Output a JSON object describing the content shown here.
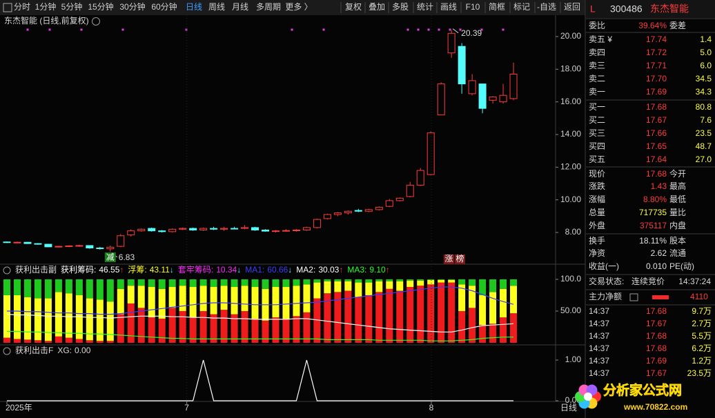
{
  "toolbar": {
    "left": [
      "分时",
      "1分钟",
      "5分钟",
      "15分钟",
      "30分钟",
      "60分钟",
      "日线",
      "周线",
      "月线",
      "多周期",
      "更多 〉"
    ],
    "active_index": 6,
    "right": [
      "复权",
      "叠加",
      "多股",
      "统计",
      "画线",
      "F10",
      "简框",
      "标记",
      "-自选",
      "返回"
    ]
  },
  "chart_data": [
    {
      "type": "candlestick",
      "title": "东杰智能 (日线,前复权)",
      "open": [
        7.42,
        7.38,
        7.4,
        7.32,
        7.28,
        7.12,
        7.15,
        7.18,
        7.2,
        7.05,
        7.0,
        7.15,
        7.85,
        8.1,
        8.25,
        8.1,
        8.05,
        8.2,
        8.25,
        8.15,
        8.25,
        8.2,
        8.25,
        8.25,
        8.3,
        8.15,
        8.08,
        8.1,
        8.12,
        8.15,
        8.3,
        8.85,
        9.1,
        9.2,
        9.35,
        9.3,
        9.4,
        9.6,
        9.95,
        10.2,
        10.9,
        11.55,
        15.2,
        19.0,
        19.4,
        16.5,
        17.1,
        16.1,
        16.0,
        16.2
      ],
      "high": [
        7.45,
        7.44,
        7.42,
        7.35,
        7.3,
        7.18,
        7.2,
        7.25,
        7.22,
        7.12,
        7.2,
        7.9,
        8.2,
        8.25,
        8.3,
        8.15,
        8.25,
        8.3,
        8.3,
        8.3,
        8.35,
        8.35,
        8.35,
        8.45,
        8.35,
        8.2,
        8.15,
        8.2,
        8.2,
        8.35,
        8.85,
        9.15,
        9.25,
        9.35,
        9.45,
        9.45,
        9.6,
        10.05,
        10.15,
        11.1,
        11.95,
        14.2,
        17.2,
        20.39,
        19.6,
        17.7,
        17.1,
        16.35,
        17.1,
        18.4
      ],
      "low": [
        7.36,
        7.34,
        7.3,
        7.25,
        7.1,
        7.08,
        7.1,
        7.12,
        7.0,
        6.95,
        6.83,
        7.1,
        7.75,
        8.05,
        8.05,
        8.0,
        8.0,
        8.15,
        8.1,
        8.1,
        8.15,
        8.1,
        8.2,
        8.2,
        8.1,
        8.05,
        8.0,
        8.05,
        8.05,
        8.1,
        8.25,
        8.8,
        9.0,
        9.1,
        9.25,
        9.25,
        9.35,
        9.55,
        9.9,
        10.15,
        10.85,
        11.5,
        15.2,
        18.7,
        16.5,
        16.4,
        15.3,
        15.9,
        15.9,
        16.1
      ],
      "close": [
        7.38,
        7.4,
        7.32,
        7.28,
        7.12,
        7.15,
        7.18,
        7.2,
        7.05,
        7.02,
        7.1,
        7.8,
        8.1,
        8.2,
        8.1,
        8.05,
        8.2,
        8.25,
        8.15,
        8.25,
        8.2,
        8.25,
        8.25,
        8.3,
        8.15,
        8.08,
        8.1,
        8.12,
        8.15,
        8.3,
        8.8,
        9.1,
        9.2,
        9.3,
        9.3,
        9.4,
        9.55,
        9.95,
        10.1,
        10.9,
        11.8,
        14.1,
        17.1,
        20.2,
        17.1,
        17.3,
        15.6,
        16.3,
        16.4,
        17.7
      ],
      "up_color": "#ff3c3c",
      "down_color": "#54fcfc",
      "xlim": [
        -0.4,
        53.07
      ],
      "ylim": [
        6.1,
        20.55
      ],
      "yticks": [
        {
          "value": 8,
          "label": "8.00"
        },
        {
          "value": 10,
          "label": "10.00"
        },
        {
          "value": 12,
          "label": "12.00"
        },
        {
          "value": 14,
          "label": "14.00"
        },
        {
          "value": 16,
          "label": "16.00"
        },
        {
          "value": 18,
          "label": "18.00"
        },
        {
          "value": 20,
          "label": "20.00"
        }
      ],
      "signals": [
        "减",
        "涨",
        "榜"
      ]
    },
    {
      "type": "stacked-bar",
      "title": "获利出击副",
      "series": [
        {
          "name": "获利筹码:",
          "color": "#ee1c1c",
          "label_color": "#ffffff",
          "trend": "↑",
          "values": [
            8,
            6,
            5,
            4,
            3,
            10,
            8,
            6,
            4,
            3,
            3,
            45,
            62,
            55,
            40,
            38,
            55,
            50,
            40,
            50,
            45,
            52,
            45,
            50,
            38,
            35,
            40,
            38,
            42,
            48,
            70,
            78,
            80,
            82,
            72,
            75,
            80,
            85,
            82,
            88,
            90,
            92,
            95,
            95,
            50,
            55,
            28,
            30,
            40,
            46.55
          ]
        },
        {
          "name": "浮筹:",
          "color": "#ffff1e",
          "label_color": "#ffff1e",
          "trend": "↓",
          "values": [
            67,
            69,
            67,
            66,
            67,
            70,
            70,
            69,
            66,
            65,
            62,
            40,
            28,
            35,
            48,
            47,
            33,
            40,
            48,
            40,
            43,
            38,
            43,
            40,
            50,
            50,
            48,
            50,
            48,
            44,
            25,
            19,
            17,
            15,
            23,
            20,
            17,
            12,
            15,
            10,
            8,
            7,
            4,
            4,
            42,
            35,
            47,
            50,
            45,
            43.11
          ]
        },
        {
          "name": "套牢筹码:",
          "color": "#1ec81e",
          "label_color": "#ff28ff",
          "trend": "↓",
          "values": [
            25,
            25,
            28,
            30,
            30,
            20,
            22,
            25,
            30,
            32,
            35,
            15,
            10,
            10,
            12,
            15,
            12,
            10,
            12,
            10,
            12,
            10,
            12,
            10,
            12,
            15,
            12,
            12,
            10,
            8,
            5,
            3,
            3,
            3,
            5,
            5,
            3,
            3,
            3,
            2,
            2,
            1,
            1,
            1,
            8,
            10,
            25,
            20,
            15,
            10.34
          ]
        }
      ],
      "lines": [
        {
          "name": "MA1:",
          "color": "#3c3cff",
          "trend": "↓",
          "values": [
            50,
            50,
            49,
            49,
            48,
            47,
            47,
            46,
            46,
            45,
            45,
            46,
            48,
            50,
            52,
            54,
            56,
            58,
            60,
            62,
            63,
            63,
            62,
            61,
            60,
            60,
            60,
            61,
            62,
            63,
            64,
            66,
            68,
            70,
            72,
            74,
            76,
            78,
            80,
            82,
            84,
            86,
            88,
            88,
            86,
            82,
            76,
            70,
            65,
            60.66
          ]
        },
        {
          "name": "MA2:",
          "color": "#ffffff",
          "trend": "↑",
          "values": [
            45,
            44,
            44,
            43,
            42,
            42,
            41,
            41,
            40,
            40,
            39,
            40,
            41,
            42,
            42,
            42,
            41,
            41,
            40,
            40,
            39,
            39,
            38,
            38,
            37,
            37,
            37,
            37,
            38,
            38,
            36,
            34,
            32,
            30,
            28,
            26,
            24,
            22,
            21,
            20,
            19,
            18,
            17,
            17,
            20,
            24,
            27,
            28,
            29,
            30.03
          ]
        },
        {
          "name": "MA3:",
          "color": "#28ff28",
          "trend": "↑",
          "values": [
            18,
            18,
            17,
            17,
            16,
            16,
            15,
            15,
            14,
            14,
            13,
            12,
            11,
            10,
            9,
            8,
            7,
            7,
            6,
            6,
            6,
            6,
            6,
            6,
            6,
            6,
            6,
            6,
            6,
            6,
            6,
            5,
            5,
            5,
            5,
            5,
            4,
            4,
            4,
            4,
            4,
            3,
            3,
            3,
            4,
            5,
            7,
            8,
            9,
            9.1
          ],
          "value_labels": [
            null,
            null,
            null,
            null,
            null,
            null,
            null,
            null,
            null,
            null,
            null,
            null,
            null,
            null,
            null,
            null,
            null,
            null,
            null,
            null,
            null,
            null,
            null,
            null,
            null,
            null,
            null,
            null,
            null,
            null,
            null,
            null,
            null,
            null,
            null,
            null,
            null,
            null,
            null,
            null,
            null,
            null,
            null,
            null,
            null,
            null,
            null,
            null,
            null,
            "9.10"
          ]
        }
      ],
      "xlim": [
        -0.4,
        53.07
      ],
      "ylim": [
        -3.3,
        105.4
      ],
      "yticks": [
        {
          "value": 100,
          "label": "100.0"
        },
        {
          "value": 50,
          "label": "50.00"
        }
      ]
    },
    {
      "type": "line",
      "title": "获利出击F",
      "series": [
        {
          "name": "XG:",
          "color": "#ffffff",
          "values": [
            0,
            0,
            0,
            0,
            0,
            0,
            0,
            0,
            0,
            0,
            0,
            0,
            0,
            0,
            0,
            0,
            0,
            0,
            0,
            1,
            0,
            0,
            0,
            0,
            0,
            0,
            0,
            0,
            0,
            1,
            0,
            0,
            0,
            0,
            0,
            0,
            0,
            0,
            0,
            0,
            0,
            0,
            0,
            0,
            0,
            0,
            0,
            0,
            0,
            0
          ],
          "value_labels": [
            null,
            null,
            null,
            null,
            null,
            null,
            null,
            null,
            null,
            null,
            null,
            null,
            null,
            null,
            null,
            null,
            null,
            null,
            null,
            null,
            null,
            null,
            null,
            null,
            null,
            null,
            null,
            null,
            null,
            null,
            null,
            null,
            null,
            null,
            null,
            null,
            null,
            null,
            null,
            null,
            null,
            null,
            null,
            null,
            null,
            null,
            null,
            null,
            null,
            "0.00"
          ]
        }
      ],
      "xlim": [
        -0.4,
        53.07
      ],
      "ylim": [
        -0.068,
        1.119
      ],
      "yticks": [
        {
          "value": 1,
          "label": "1.00"
        },
        {
          "value": 0,
          "label": "0.00"
        }
      ],
      "xticks": [
        {
          "value": 0,
          "label": "2025年"
        },
        {
          "value": 17.4,
          "label": "7"
        },
        {
          "value": 41.05,
          "label": "8"
        }
      ],
      "corner_label": "日线"
    }
  ],
  "quote": {
    "flag": "L",
    "code": "300486",
    "name": "东杰智能",
    "weibi": {
      "label": "委比",
      "value": "39.64%",
      "label2": "委差"
    },
    "book": [
      {
        "label": "卖五 ¥",
        "price": "17.74",
        "volume": "1.4"
      },
      {
        "label": "卖四",
        "price": "17.72",
        "volume": "5.0"
      },
      {
        "label": "卖三",
        "price": "17.71",
        "volume": "6.0"
      },
      {
        "label": "卖二",
        "price": "17.70",
        "volume": "34.5"
      },
      {
        "label": "卖一",
        "price": "17.69",
        "volume": "34.3"
      },
      {
        "label": "买一",
        "price": "17.68",
        "volume": "80.8"
      },
      {
        "label": "买二",
        "price": "17.67",
        "volume": "7.6"
      },
      {
        "label": "买三",
        "price": "17.66",
        "volume": "23.5"
      },
      {
        "label": "买四",
        "price": "17.65",
        "volume": "48.7"
      },
      {
        "label": "买五",
        "price": "17.64",
        "volume": "27.0"
      }
    ],
    "stats": [
      {
        "label": "现价",
        "value": "17.68",
        "label2": "今开"
      },
      {
        "label": "涨跌",
        "value": "1.43",
        "label2": "最高"
      },
      {
        "label": "涨幅",
        "value": "8.80%",
        "label2": "最低"
      },
      {
        "label": "总量",
        "value": "717735",
        "label2": "量比"
      },
      {
        "label": "外盘",
        "value": "375117",
        "label2": "内盘"
      },
      {
        "label": "换手",
        "value": "18.11%",
        "label2": "股本"
      },
      {
        "label": "净资",
        "value": "2.62",
        "label2": "流通"
      },
      {
        "label": "收益(一)",
        "value": "0.010",
        "label2": "PE(动)"
      }
    ],
    "status": {
      "label": "交易状态:",
      "value": "连续竞价",
      "time": "14:37:24"
    },
    "flow": {
      "label": "主力净额",
      "value": "4110"
    },
    "trades": [
      {
        "time": "14:37",
        "price": "17.68",
        "volume": "9.7万"
      },
      {
        "time": "14:37",
        "price": "17.67",
        "volume": "2.7万"
      },
      {
        "time": "14:37",
        "price": "17.68",
        "volume": "5.5万"
      },
      {
        "time": "14:37",
        "price": "17.68",
        "volume": "6.2万"
      },
      {
        "time": "14:37",
        "price": "17.69",
        "volume": "1.2万"
      },
      {
        "time": "14:37",
        "price": "17.67",
        "volume": "23.5万"
      }
    ]
  },
  "watermark": {
    "name": "分析家公式网",
    "url": "www.70822.com"
  }
}
